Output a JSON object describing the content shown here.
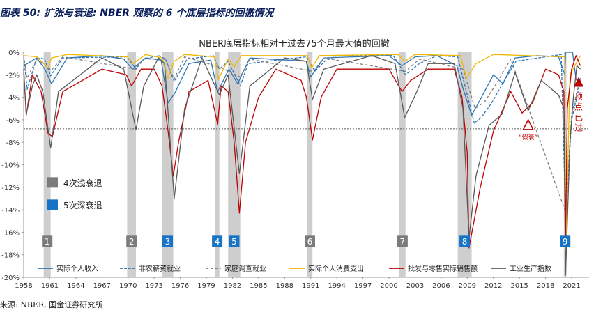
{
  "header": {
    "title": "图表 50:  扩张与衰退: NBER 观察的 6 个底层指标的回撤情况"
  },
  "source_note": "来源: NBER, 国金证券研究所",
  "colors": {
    "light_recession": "#c9c9c9",
    "deep_recession_badge": "#1673c5",
    "light_recession_badge": "#7b7b7b",
    "annotation_red": "#c00000",
    "threshold_line": "#595959"
  },
  "chart_data": {
    "type": "line",
    "title": "NBER底层指标相对于过去75个月最大值的回撤",
    "ylim": [
      -20,
      0
    ],
    "xlim": [
      1958,
      2023
    ],
    "y_tick_values": [
      0,
      -2,
      -4,
      -6,
      -8,
      -10,
      -12,
      -14,
      -16,
      -18,
      -20
    ],
    "y_tick_labels": [
      "0%",
      "-2%",
      "-4%",
      "-6%",
      "-8%",
      "-10%",
      "-12%",
      "-14%",
      "-16%",
      "-18%",
      "-20%"
    ],
    "x_tick_values": [
      1958,
      1961,
      1964,
      1967,
      1970,
      1973,
      1976,
      1979,
      1982,
      1985,
      1988,
      1991,
      1994,
      1997,
      2000,
      2003,
      2006,
      2009,
      2012,
      2015,
      2018,
      2021
    ],
    "x_tick_labels": [
      "1958",
      "1961",
      "1964",
      "1967",
      "1970",
      "1973",
      "1976",
      "1979",
      "1982",
      "1985",
      "1988",
      "1991",
      "1994",
      "1997",
      "2000",
      "2003",
      "2006",
      "2009",
      "2012",
      "2015",
      "2018",
      "2021"
    ],
    "threshold": -6.8,
    "legend_placement": "bottom",
    "recession_legend": [
      {
        "label": "4次浅衰退",
        "color": "#7b7b7b"
      },
      {
        "label": "5次深衰退",
        "color": "#1673c5"
      }
    ],
    "recessions": [
      {
        "start": 1960.3,
        "end": 1961.1,
        "label": "1",
        "type": "shallow"
      },
      {
        "start": 1969.9,
        "end": 1970.9,
        "label": "2",
        "type": "shallow"
      },
      {
        "start": 1973.9,
        "end": 1975.2,
        "label": "3",
        "type": "deep"
      },
      {
        "start": 1980.0,
        "end": 1980.5,
        "label": "4",
        "type": "deep"
      },
      {
        "start": 1981.5,
        "end": 1982.9,
        "label": "5",
        "type": "deep"
      },
      {
        "start": 1990.6,
        "end": 1991.2,
        "label": "6",
        "type": "shallow"
      },
      {
        "start": 2001.2,
        "end": 2001.9,
        "label": "7",
        "type": "shallow"
      },
      {
        "start": 2007.9,
        "end": 2009.5,
        "label": "8",
        "type": "deep"
      },
      {
        "start": 2020.1,
        "end": 2020.4,
        "label": "9",
        "type": "deep"
      }
    ],
    "annotations": {
      "fake_recession": "“假衰”",
      "peak_passed": "顶点已过"
    },
    "series": [
      {
        "name": "实际个人收入",
        "color": "#2e75b6",
        "dash": "solid",
        "x": [
          1958,
          1959.5,
          1960.5,
          1961.2,
          1963,
          1967,
          1969.5,
          1970.5,
          1972,
          1973.8,
          1974.6,
          1975.4,
          1977,
          1979.5,
          1980.3,
          1981.6,
          1982.6,
          1984,
          1990.5,
          1991,
          1992.5,
          2000,
          2001.5,
          2003,
          2005.5,
          2007.8,
          2008.5,
          2009.5,
          2010.5,
          2012,
          2013.1,
          2014.5,
          2017,
          2019.5,
          2020.2,
          2020.3,
          2021.1,
          2021.5,
          2022
        ],
        "y": [
          -1.2,
          -0.5,
          -1.6,
          -2.8,
          -0.5,
          -0.3,
          -0.6,
          -1.5,
          -0.5,
          -0.7,
          -4.5,
          -3.6,
          -1.0,
          -0.7,
          -3.5,
          -1.5,
          -2.8,
          -0.5,
          -0.8,
          -2.2,
          -0.5,
          -0.3,
          -1.2,
          -0.4,
          -0.3,
          -1.2,
          -3.2,
          -5.6,
          -4.2,
          -2.0,
          -2.8,
          -0.5,
          -0.3,
          -0.4,
          -2.0,
          0.0,
          0.0,
          -2.4,
          -3.0
        ]
      },
      {
        "name": "非农薪资就业",
        "color": "#2e75b6",
        "dash": "4,2",
        "x": [
          1958,
          1958.4,
          1959.5,
          1960.4,
          1961.1,
          1962.5,
          1969.9,
          1970.9,
          1971.8,
          1973.5,
          1974.3,
          1975.3,
          1976.8,
          1979.8,
          1980.5,
          1981.5,
          1982.9,
          1983.8,
          1990.5,
          1991.5,
          1992.6,
          1994,
          2000.5,
          2001.9,
          2003.5,
          2005.5,
          2007.9,
          2009.8,
          2010.6,
          2011.8,
          2013.2,
          2014.6,
          2019.8,
          2020.3,
          2021,
          2021.6,
          2022
        ],
        "y": [
          -0.3,
          -3.3,
          -0.5,
          -0.6,
          -2.1,
          -0.5,
          -0.4,
          -1.5,
          -0.6,
          -0.3,
          -0.6,
          -2.6,
          -0.6,
          -0.3,
          -1.5,
          -0.8,
          -3.0,
          -1.0,
          -0.4,
          -1.7,
          -0.8,
          -0.3,
          -0.3,
          -2.0,
          -1.0,
          -0.3,
          -0.4,
          -6.3,
          -5.8,
          -4.5,
          -2.6,
          -0.8,
          -0.2,
          -14.8,
          -6.0,
          -4.0,
          -2.5
        ]
      },
      {
        "name": "家庭调查就业",
        "color": "#7f7f7f",
        "dash": "4,3",
        "x": [
          1958,
          1958.4,
          1959.5,
          1961.2,
          1962.5,
          1970.8,
          1971.8,
          1974.3,
          1975.3,
          1976.5,
          1980.5,
          1982.9,
          1984,
          1991.3,
          1992.5,
          2001.9,
          2003.5,
          2008.5,
          2009.9,
          2011,
          2012.5,
          2014,
          2020.3,
          2021,
          2022
        ],
        "y": [
          -0.3,
          -2.3,
          -0.6,
          -1.6,
          -0.4,
          -1.5,
          -0.6,
          -0.6,
          -2.4,
          -0.4,
          -1.3,
          -2.2,
          -0.6,
          -1.7,
          -0.5,
          -1.7,
          -0.6,
          -1.5,
          -5.0,
          -4.4,
          -2.6,
          -0.6,
          -14.2,
          -5.5,
          -2.3
        ]
      },
      {
        "name": "实际个人消费支出",
        "color": "#f0b800",
        "dash": "solid",
        "x": [
          1958,
          1959.5,
          1960.8,
          1961.2,
          1963,
          1969.9,
          1970.6,
          1972,
          1973.9,
          1974.6,
          1975.3,
          1976.5,
          1979.9,
          1980.4,
          1981.5,
          1982.2,
          1983,
          1990.6,
          1991.1,
          1992,
          2001,
          2001.8,
          2003,
          2008.2,
          2008.9,
          2010,
          2012,
          2020.2,
          2020.3,
          2020.8,
          2022
        ],
        "y": [
          -0.3,
          -0.4,
          -1.4,
          -0.5,
          -0.2,
          -0.4,
          -1.0,
          -0.2,
          -0.5,
          -2.3,
          -0.8,
          -0.2,
          -0.4,
          -2.4,
          -0.6,
          -1.3,
          -0.3,
          -0.3,
          -1.4,
          -0.3,
          -0.2,
          -0.8,
          -0.2,
          -0.3,
          -2.3,
          -1.0,
          -0.2,
          -0.4,
          -18.5,
          -2.0,
          -0.3
        ]
      },
      {
        "name": "批发与零售实际销售额",
        "color": "#c00000",
        "dash": "solid",
        "x": [
          1958,
          1958.3,
          1959,
          1960,
          1960.8,
          1961.3,
          1962.5,
          1967,
          1969.8,
          1970.4,
          1971.5,
          1973,
          1973.9,
          1974.6,
          1975.2,
          1975.8,
          1977,
          1979.2,
          1980.3,
          1980.7,
          1981.5,
          1982.2,
          1982.8,
          1983.5,
          1985,
          1987,
          1988.5,
          1989.9,
          1990.5,
          1991.2,
          1992.2,
          1994,
          2000,
          2001.5,
          2002.5,
          2004.5,
          2007.5,
          2008.4,
          2009.0,
          2009.2,
          2010.5,
          2012,
          2014,
          2015.3,
          2016.5,
          2018,
          2019.5,
          2020.1,
          2020.3,
          2020.5,
          2021,
          2021.5,
          2022
        ],
        "y": [
          -1.5,
          -5.6,
          -2.0,
          -3.5,
          -7.2,
          -7.5,
          -3.5,
          -1.5,
          -2.0,
          -3.0,
          -1.5,
          -1.5,
          -3.0,
          -7.0,
          -11.0,
          -8.0,
          -3.5,
          -2.5,
          -6.4,
          -3.0,
          -3.5,
          -8.0,
          -14.3,
          -8.0,
          -4.0,
          -1.5,
          -2.0,
          -2.5,
          -4.0,
          -7.8,
          -4.0,
          -1.5,
          -1.5,
          -3.5,
          -2.5,
          -1.5,
          -1.5,
          -4.0,
          -9.0,
          -17.4,
          -12.0,
          -7.0,
          -3.5,
          -5.4,
          -4.5,
          -1.5,
          -2.0,
          -3.5,
          -16.5,
          -5.0,
          -1.5,
          -0.3,
          -1.2
        ]
      },
      {
        "name": "工业生产指数",
        "color": "#595959",
        "dash": "solid",
        "x": [
          1958,
          1958.3,
          1959,
          1959.5,
          1960.2,
          1961.1,
          1962,
          1967,
          1969.5,
          1970.9,
          1971.8,
          1973.5,
          1974.2,
          1975.3,
          1976.5,
          1978.5,
          1980.5,
          1981.5,
          1982.8,
          1984,
          1988,
          1990.5,
          1991.2,
          1992.5,
          1998,
          2000.7,
          2001.8,
          2003.2,
          2004.5,
          2007.5,
          2008.5,
          2009.2,
          2010,
          2011.5,
          2013,
          2014.5,
          2016,
          2017.5,
          2019.5,
          2020.1,
          2020.3,
          2020.8,
          2021.2,
          2021.6,
          2022
        ],
        "y": [
          -1.5,
          -5.5,
          -3.0,
          -2.0,
          -3.5,
          -8.5,
          -3.5,
          -0.5,
          -1.5,
          -6.9,
          -3.0,
          -0.5,
          -1.0,
          -13.0,
          -5.0,
          -0.5,
          -3.8,
          -2.0,
          -10.8,
          -3.0,
          -0.5,
          -0.8,
          -4.2,
          -1.5,
          -0.3,
          -1.0,
          -5.8,
          -3.5,
          -1.0,
          -1.0,
          -5.0,
          -16.5,
          -11.0,
          -6.5,
          -5.5,
          -1.8,
          -5.2,
          -2.5,
          -3.8,
          -5.0,
          -19.8,
          -8.0,
          -4.0,
          -1.2,
          -1.5
        ]
      }
    ]
  }
}
